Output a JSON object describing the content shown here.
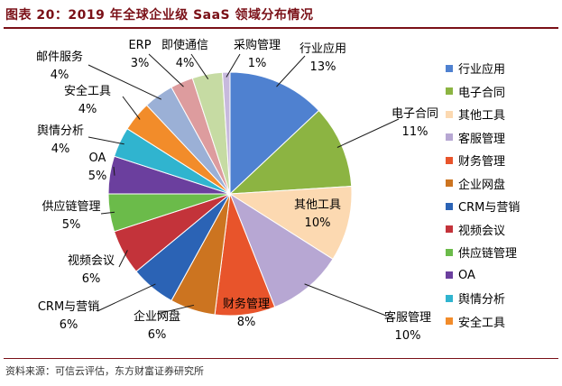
{
  "figure": {
    "title": "图表 20：2019 年全球企业级 SaaS 领域分布情况",
    "source": "资料来源：可信云评估，东方财富证券研究所"
  },
  "chart_data": {
    "type": "pie",
    "title": "",
    "start_angle_deg": 0,
    "direction": "clockwise",
    "legend_position": "right",
    "slices": [
      {
        "name": "行业应用",
        "value": 13,
        "label": "13%",
        "color": "#4f81d0"
      },
      {
        "name": "电子合同",
        "value": 11,
        "label": "11%",
        "color": "#8cb442"
      },
      {
        "name": "其他工具",
        "value": 10,
        "label": "10%",
        "color": "#fcd9b1"
      },
      {
        "name": "客服管理",
        "value": 10,
        "label": "10%",
        "color": "#b7a7d3"
      },
      {
        "name": "财务管理",
        "value": 8,
        "label": "8%",
        "color": "#e8542b"
      },
      {
        "name": "企业网盘",
        "value": 6,
        "label": "6%",
        "color": "#cc7420"
      },
      {
        "name": "CRM与营销",
        "value": 6,
        "label": "6%",
        "color": "#2b63b5"
      },
      {
        "name": "视频会议",
        "value": 6,
        "label": "6%",
        "color": "#c3333a"
      },
      {
        "name": "供应链管理",
        "value": 5,
        "label": "5%",
        "color": "#6bbb4a"
      },
      {
        "name": "OA",
        "value": 5,
        "label": "5%",
        "color": "#6b3f9e"
      },
      {
        "name": "舆情分析",
        "value": 4,
        "label": "4%",
        "color": "#30b4cf"
      },
      {
        "name": "安全工具",
        "value": 4,
        "label": "4%",
        "color": "#f28c2a"
      },
      {
        "name": "邮件服务",
        "value": 4,
        "label": "4%",
        "color": "#9bb0d6"
      },
      {
        "name": "ERP",
        "value": 3,
        "label": "3%",
        "color": "#dd9c9e"
      },
      {
        "name": "即使通信",
        "value": 4,
        "label": "4%",
        "color": "#c6dba3"
      },
      {
        "name": "采购管理",
        "value": 1,
        "label": "1%",
        "color": "#c7b9dd"
      }
    ]
  }
}
